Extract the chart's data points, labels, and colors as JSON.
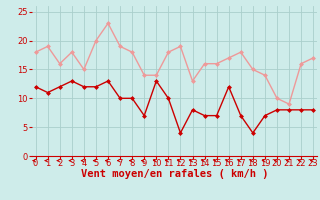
{
  "x": [
    0,
    1,
    2,
    3,
    4,
    5,
    6,
    7,
    8,
    9,
    10,
    11,
    12,
    13,
    14,
    15,
    16,
    17,
    18,
    19,
    20,
    21,
    22,
    23
  ],
  "wind_avg": [
    12,
    11,
    12,
    13,
    12,
    12,
    13,
    10,
    10,
    7,
    13,
    10,
    4,
    8,
    7,
    7,
    12,
    7,
    4,
    7,
    8,
    8,
    8,
    8
  ],
  "wind_gust": [
    18,
    19,
    16,
    18,
    15,
    20,
    23,
    19,
    18,
    14,
    14,
    18,
    19,
    13,
    16,
    16,
    17,
    18,
    15,
    14,
    10,
    9,
    16,
    17
  ],
  "bg_color": "#ceecea",
  "grid_color": "#aacfcc",
  "avg_color": "#cc0000",
  "gust_color": "#ee9999",
  "xlabel": "Vent moyen/en rafales ( km/h )",
  "xlabel_color": "#cc0000",
  "xlabel_fontsize": 7.5,
  "tick_color": "#cc0000",
  "tick_fontsize": 6,
  "ylim": [
    0,
    26
  ],
  "xlim": [
    -0.3,
    23.3
  ],
  "arrow_color": "#cc0000",
  "line_width": 1.0,
  "marker_size": 2.5
}
